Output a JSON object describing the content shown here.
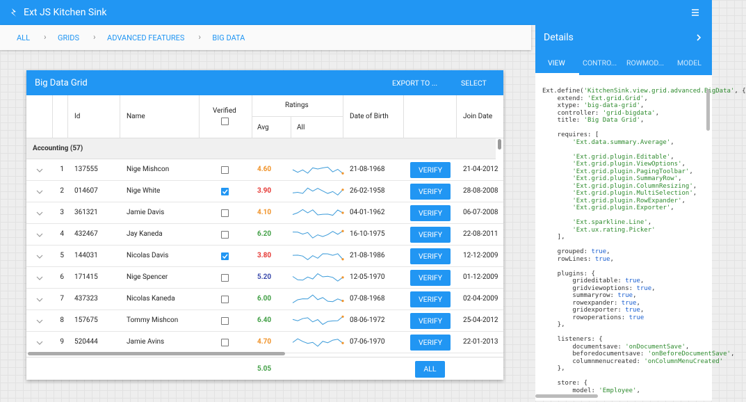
{
  "app_title": "Ext JS Kitchen Sink",
  "breadcrumb": [
    "ALL",
    "GRIDS",
    "ADVANCED FEATURES",
    "BIG DATA"
  ],
  "details": {
    "title": "Details",
    "tabs": [
      "VIEW",
      "CONTRO...",
      "ROWMOD...",
      "MODEL"
    ],
    "active_tab": 0,
    "code_blocks": [
      [
        "Ext.define('KitchenSink.view.grid.advanced.BigData', {",
        "    extend: 'Ext.grid.Grid',",
        "    xtype: 'big-data-grid',",
        "    controller: 'grid-bigdata',",
        "    title: 'Big Data Grid',"
      ],
      [
        "    requires: [",
        "        'Ext.data.summary.Average',"
      ],
      [
        "        'Ext.grid.plugin.Editable',",
        "        'Ext.grid.plugin.ViewOptions',",
        "        'Ext.grid.plugin.PagingToolbar',",
        "        'Ext.grid.plugin.SummaryRow',",
        "        'Ext.grid.plugin.ColumnResizing',",
        "        'Ext.grid.plugin.MultiSelection',",
        "        'Ext.grid.plugin.RowExpander',",
        "        'Ext.grid.plugin.Exporter',"
      ],
      [
        "        'Ext.sparkline.Line',",
        "        'Ext.ux.rating.Picker'",
        "    ],"
      ],
      [
        "    grouped: true,",
        "    rowLines: true,"
      ],
      [
        "    plugins: {",
        "        grideditable: true,",
        "        gridviewoptions: true,",
        "        summaryrow: true,",
        "        rowexpander: true,",
        "        gridexporter: true,",
        "        rowoperations: true",
        "    },"
      ],
      [
        "    listeners: {",
        "        documentsave: 'onDocumentSave',",
        "        beforedocumentsave: 'onBeforeDocumentSave',",
        "        columnmenucreated: 'onColumnMenuCreated'",
        "    },"
      ],
      [
        "    store: {",
        "        model: 'Employee',"
      ]
    ]
  },
  "grid": {
    "title": "Big Data Grid",
    "tools": [
      "EXPORT TO ...",
      "SELECT"
    ],
    "columns": {
      "id": "Id",
      "name": "Name",
      "verified": "Verified",
      "ratings": "Ratings",
      "avg": "Avg",
      "all": "All",
      "dob": "Date of Birth",
      "join": "Join Date"
    },
    "group": "Accounting (57)",
    "verify_label": "VERIFY",
    "rows": [
      {
        "num": "1",
        "id": "137555",
        "name": "Nige Mishcon",
        "verified": false,
        "avg": "4.60",
        "avg_color": "#f0932a",
        "dob": "21-08-1968",
        "join": "21-04-2012"
      },
      {
        "num": "2",
        "id": "014607",
        "name": "Nige White",
        "verified": true,
        "avg": "3.90",
        "avg_color": "#e53935",
        "dob": "26-02-1958",
        "join": "28-08-2008"
      },
      {
        "num": "3",
        "id": "361321",
        "name": "Jamie Davis",
        "verified": false,
        "avg": "4.10",
        "avg_color": "#f0932a",
        "dob": "04-01-1962",
        "join": "06-07-2008"
      },
      {
        "num": "4",
        "id": "432467",
        "name": "Jay Kaneda",
        "verified": false,
        "avg": "6.20",
        "avg_color": "#43a047",
        "dob": "16-10-1975",
        "join": "22-08-2011"
      },
      {
        "num": "5",
        "id": "144031",
        "name": "Nicolas Davis",
        "verified": true,
        "avg": "3.80",
        "avg_color": "#e53935",
        "dob": "21-08-1986",
        "join": "12-12-2009"
      },
      {
        "num": "6",
        "id": "171415",
        "name": "Nige Spencer",
        "verified": false,
        "avg": "5.20",
        "avg_color": "#3949ab",
        "dob": "12-05-1970",
        "join": "01-12-2009"
      },
      {
        "num": "7",
        "id": "437323",
        "name": "Nicolas Kaneda",
        "verified": false,
        "avg": "6.00",
        "avg_color": "#43a047",
        "dob": "07-08-1968",
        "join": "02-04-2009"
      },
      {
        "num": "8",
        "id": "157675",
        "name": "Tommy Mishcon",
        "verified": false,
        "avg": "6.40",
        "avg_color": "#43a047",
        "dob": "08-06-1972",
        "join": "25-04-2012"
      },
      {
        "num": "9",
        "id": "520444",
        "name": "Jamie Avins",
        "verified": false,
        "avg": "4.70",
        "avg_color": "#f0932a",
        "dob": "07-06-1970",
        "join": "22-01-2013"
      }
    ],
    "summary": {
      "avg": "5.05",
      "button": "ALL"
    }
  }
}
